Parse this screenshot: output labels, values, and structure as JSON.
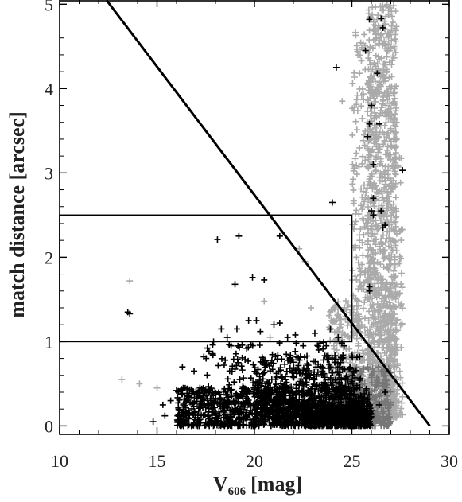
{
  "chart_data": {
    "type": "scatter",
    "title": "",
    "xlabel": {
      "main": "V",
      "subscript": "606",
      "unit": "[mag]"
    },
    "ylabel": "match distance [arcsec]",
    "xlim": [
      10,
      30
    ],
    "ylim": [
      -0.1,
      5.05
    ],
    "xticks": [
      "10",
      "15",
      "20",
      "25",
      "30"
    ],
    "yticks": [
      "0",
      "1",
      "2",
      "3",
      "4",
      "5"
    ],
    "grid": false,
    "legend": "none",
    "colors": {
      "matched": "#000000",
      "unmatched": "#aaaaaa",
      "overlap": "#777777"
    },
    "overlays": {
      "diagonal_line": {
        "x": [
          12.4,
          29.0
        ],
        "y": [
          5.05,
          0.0
        ]
      },
      "box": {
        "x": [
          10.0,
          25.0
        ],
        "y": [
          1.0,
          2.5
        ]
      }
    },
    "series": [
      {
        "color": "#aaaaaa",
        "points": [
          [
            13.6,
            1.72
          ],
          [
            13.2,
            0.55
          ],
          [
            14.1,
            0.5
          ],
          [
            15.0,
            0.45
          ],
          [
            17.7,
            0.22
          ],
          [
            18.7,
            0.15
          ],
          [
            20.5,
            1.48
          ],
          [
            20.8,
            1.05
          ],
          [
            22.3,
            2.1
          ],
          [
            22.6,
            1.95
          ],
          [
            22.9,
            1.4
          ],
          [
            24.5,
            3.85
          ],
          [
            25.4,
            4.18
          ],
          [
            24.9,
            0.75
          ],
          [
            25.1,
            0.6
          ],
          [
            25.6,
            0.68
          ],
          [
            26.0,
            0.65
          ],
          [
            26.4,
            0.55
          ],
          [
            27.0,
            0.4
          ]
        ],
        "dense_regions": [
          {
            "x": [
              25.8,
              27.3
            ],
            "y": [
              0.1,
              5.0
            ],
            "count": 1200
          },
          {
            "x": [
              25.0,
              26.0
            ],
            "y": [
              0.3,
              4.7
            ],
            "count": 260
          },
          {
            "x": [
              23.8,
              25.5
            ],
            "y": [
              0.05,
              1.5
            ],
            "count": 240
          },
          {
            "x": [
              26.8,
              27.6
            ],
            "y": [
              0.1,
              3.2
            ],
            "count": 120
          }
        ]
      },
      {
        "color": "#777777",
        "points": [],
        "dense_regions": [
          {
            "x": [
              24.6,
              27.0
            ],
            "y": [
              0.0,
              0.7
            ],
            "count": 360
          }
        ]
      },
      {
        "color": "#000000",
        "points": [
          [
            25.9,
            4.82
          ],
          [
            26.5,
            4.83
          ],
          [
            26.6,
            4.72
          ],
          [
            25.7,
            4.45
          ],
          [
            24.2,
            4.25
          ],
          [
            26.3,
            4.18
          ],
          [
            26.0,
            3.8
          ],
          [
            25.9,
            3.58
          ],
          [
            26.4,
            3.58
          ],
          [
            25.8,
            3.43
          ],
          [
            26.1,
            3.1
          ],
          [
            27.6,
            3.03
          ],
          [
            26.1,
            2.7
          ],
          [
            24.0,
            2.65
          ],
          [
            26.0,
            2.55
          ],
          [
            26.1,
            2.5
          ],
          [
            26.5,
            2.55
          ],
          [
            26.6,
            2.35
          ],
          [
            26.7,
            2.38
          ],
          [
            21.3,
            2.25
          ],
          [
            19.2,
            2.25
          ],
          [
            18.1,
            2.21
          ],
          [
            25.9,
            1.65
          ],
          [
            25.9,
            1.6
          ],
          [
            19.9,
            1.76
          ],
          [
            20.5,
            1.73
          ],
          [
            19.0,
            1.68
          ],
          [
            13.5,
            1.35
          ],
          [
            13.6,
            1.33
          ],
          [
            19.7,
            1.25
          ],
          [
            20.1,
            1.25
          ],
          [
            21.0,
            1.2
          ],
          [
            21.3,
            1.22
          ],
          [
            18.3,
            1.15
          ],
          [
            18.6,
            1.05
          ],
          [
            19.1,
            1.15
          ],
          [
            20.3,
            1.12
          ],
          [
            21.7,
            1.05
          ],
          [
            22.1,
            1.08
          ],
          [
            23.1,
            1.1
          ],
          [
            23.9,
            1.15
          ],
          [
            24.3,
            1.05
          ],
          [
            17.9,
            1.0
          ],
          [
            18.8,
            0.95
          ],
          [
            19.6,
            0.92
          ],
          [
            17.4,
            0.82
          ],
          [
            18.5,
            0.78
          ],
          [
            16.3,
            0.7
          ],
          [
            16.9,
            0.65
          ],
          [
            17.2,
            0.45
          ],
          [
            16.0,
            0.42
          ],
          [
            15.3,
            0.25
          ],
          [
            15.7,
            0.3
          ],
          [
            16.6,
            0.35
          ],
          [
            22.5,
            0.95
          ],
          [
            23.3,
            0.9
          ],
          [
            24.6,
            0.95
          ],
          [
            25.4,
            0.82
          ],
          [
            26.4,
            0.25
          ],
          [
            26.7,
            0.4
          ],
          [
            14.8,
            0.05
          ],
          [
            15.4,
            0.12
          ]
        ],
        "dense_regions": [
          {
            "x": [
              16.0,
              26.0
            ],
            "y": [
              0.0,
              0.45
            ],
            "count": 1000
          },
          {
            "x": [
              20.0,
              25.5
            ],
            "y": [
              0.1,
              0.85
            ],
            "count": 500
          },
          {
            "x": [
              17.5,
              24.5
            ],
            "y": [
              0.25,
              1.0
            ],
            "count": 180
          },
          {
            "x": [
              22.5,
              26.0
            ],
            "y": [
              0.0,
              0.25
            ],
            "count": 350
          }
        ]
      }
    ]
  }
}
